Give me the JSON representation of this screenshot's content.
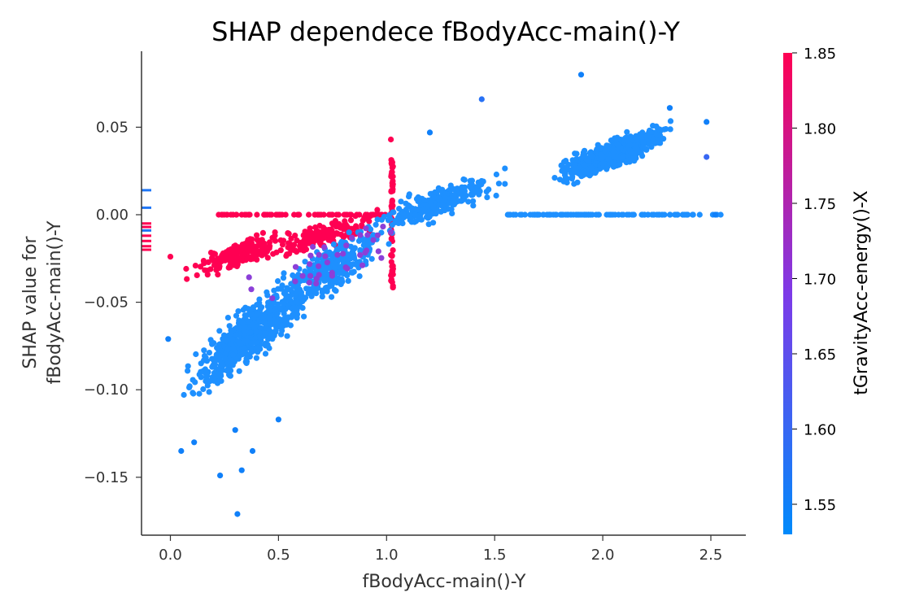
{
  "chart_data": {
    "type": "scatter",
    "title": "SHAP dependece fBodyAcc-main()-Y",
    "xlabel": "fBodyAcc-main()-Y",
    "ylabel_line1": "SHAP value for",
    "ylabel_line2": "fBodyAcc-main()-Y",
    "xlim": [
      -0.13,
      2.66
    ],
    "ylim": [
      -0.183,
      0.092
    ],
    "x_ticks": [
      0.0,
      0.5,
      1.0,
      1.5,
      2.0,
      2.5
    ],
    "x_tick_labels": [
      "0.0",
      "0.5",
      "1.0",
      "1.5",
      "2.0",
      "2.5"
    ],
    "y_ticks": [
      -0.15,
      -0.1,
      -0.05,
      0.0,
      0.05
    ],
    "y_tick_labels": [
      "−0.15",
      "−0.10",
      "−0.05",
      "0.00",
      "0.05"
    ],
    "grid": false,
    "colorbar": {
      "label": "tGravityAcc-energy()-X",
      "range": [
        1.53,
        1.85
      ],
      "ticks": [
        1.55,
        1.6,
        1.65,
        1.7,
        1.75,
        1.8,
        1.85
      ],
      "tick_labels": [
        "1.55",
        "1.60",
        "1.65",
        "1.70",
        "1.75",
        "1.80",
        "1.85"
      ],
      "colormap": [
        "#008afb",
        "#7d3ae8",
        "#ff0052"
      ]
    },
    "colors": {
      "low": "#008afb",
      "mid": "#7d3ae8",
      "high": "#ff0052"
    },
    "clusters": [
      {
        "color": "#ff0052",
        "x": [
          0.05,
          0.6
        ],
        "y": [
          -0.04,
          -0.005
        ],
        "n": 180
      },
      {
        "color": "#ff0052",
        "x": [
          0.4,
          1.0
        ],
        "y": [
          -0.03,
          0.005
        ],
        "n": 150
      },
      {
        "color": "#ff0052",
        "x": [
          0.22,
          1.0
        ],
        "y": [
          0.0,
          0.0
        ],
        "n": 70
      },
      {
        "color": "#ff0052",
        "x": [
          1.02,
          1.03
        ],
        "y": [
          -0.042,
          0.032
        ],
        "n": 70
      },
      {
        "color": "#1e90ff",
        "x": [
          0.05,
          0.65
        ],
        "y": [
          -0.11,
          -0.03
        ],
        "n": 550
      },
      {
        "color": "#1e90ff",
        "x": [
          0.4,
          1.05
        ],
        "y": [
          -0.07,
          0.005
        ],
        "n": 350
      },
      {
        "color": "#1e90ff",
        "x": [
          0.9,
          1.6
        ],
        "y": [
          -0.015,
          0.03
        ],
        "n": 250
      },
      {
        "color": "#1e90ff",
        "x": [
          1.75,
          2.35
        ],
        "y": [
          0.015,
          0.055
        ],
        "n": 650
      },
      {
        "color": "#1e90ff",
        "x": [
          1.55,
          2.55
        ],
        "y": [
          0.0,
          0.0
        ],
        "n": 120
      },
      {
        "color": "#8c3fd8",
        "x": [
          0.3,
          1.2
        ],
        "y": [
          -0.06,
          0.01
        ],
        "n": 40
      }
    ],
    "points": [
      {
        "x": 1.9,
        "y": 0.08,
        "c": 1.55
      },
      {
        "x": 0.31,
        "y": -0.171,
        "c": 1.55
      },
      {
        "x": 0.23,
        "y": -0.149,
        "c": 1.55
      },
      {
        "x": 0.33,
        "y": -0.146,
        "c": 1.55
      },
      {
        "x": 0.38,
        "y": -0.135,
        "c": 1.55
      },
      {
        "x": 0.05,
        "y": -0.135,
        "c": 1.55
      },
      {
        "x": 0.11,
        "y": -0.13,
        "c": 1.55
      },
      {
        "x": 1.44,
        "y": 0.066,
        "c": 1.58
      },
      {
        "x": 2.31,
        "y": 0.061,
        "c": 1.55
      },
      {
        "x": 2.52,
        "y": 0.0,
        "c": 1.55
      },
      {
        "x": 1.02,
        "y": 0.043,
        "c": 1.85
      },
      {
        "x": 0.0,
        "y": -0.024,
        "c": 1.85
      },
      {
        "x": -0.01,
        "y": -0.071,
        "c": 1.55
      },
      {
        "x": 1.2,
        "y": 0.047,
        "c": 1.55
      },
      {
        "x": 2.48,
        "y": 0.053,
        "c": 1.55
      },
      {
        "x": 2.48,
        "y": 0.033,
        "c": 1.6
      },
      {
        "x": 0.5,
        "y": -0.117,
        "c": 1.55
      },
      {
        "x": 0.3,
        "y": -0.123,
        "c": 1.55
      }
    ],
    "rug_marks": [
      {
        "y": 0.014,
        "c": 1.57
      },
      {
        "y": 0.004,
        "c": 1.57
      },
      {
        "y": -0.005,
        "c": 1.85
      },
      {
        "y": -0.007,
        "c": 1.85
      },
      {
        "y": -0.009,
        "c": 1.57
      },
      {
        "y": -0.012,
        "c": 1.85
      },
      {
        "y": -0.015,
        "c": 1.85
      },
      {
        "y": -0.018,
        "c": 1.85
      },
      {
        "y": -0.02,
        "c": 1.85
      }
    ]
  }
}
